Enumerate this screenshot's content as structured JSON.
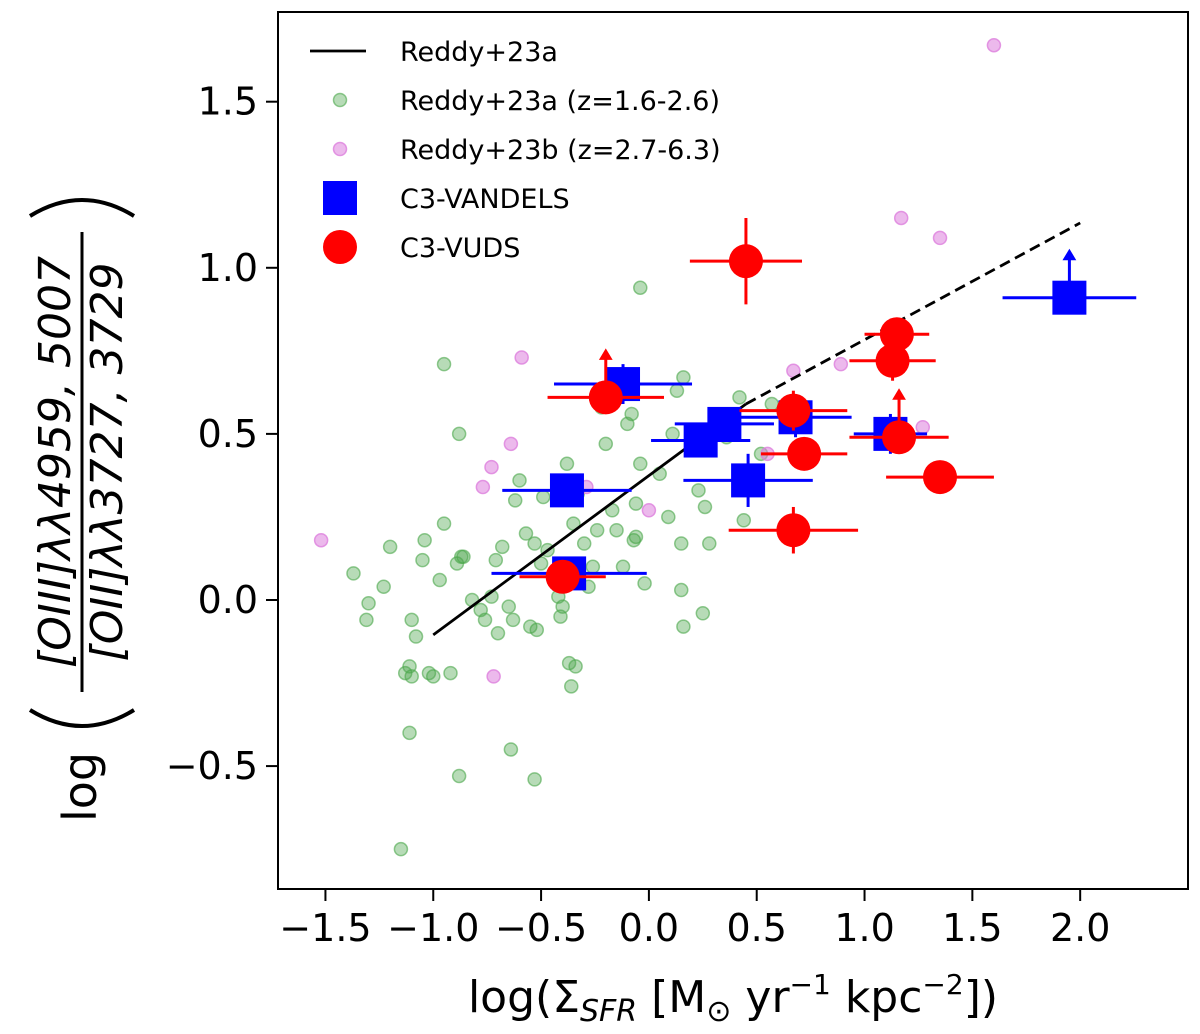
{
  "chart_data": {
    "type": "scatter",
    "xlabel": "log(Σ_SFR [M⊙ yr⁻¹ kpc⁻²])",
    "xlabel_parts": {
      "pre": "log(Σ",
      "sub": "SFR",
      "mid": " [M",
      "sun": "⊙",
      "yr": " yr",
      "sup1": "−1",
      "kpc": " kpc",
      "sup2": "−2",
      "post": "])"
    },
    "ylabel": "log([OIII]λλ4959,5007 / [OII]λλ3727,3729)",
    "ylabel_parts": {
      "log": "log",
      "numerator": "[OIII]λλ4959, 5007",
      "denominator": "[OII]λλ3727, 3729"
    },
    "xlim": [
      -1.72,
      2.5
    ],
    "ylim": [
      -0.87,
      1.77
    ],
    "xticks": [
      -1.5,
      -1.0,
      -0.5,
      0.0,
      0.5,
      1.0,
      1.5,
      2.0
    ],
    "xtick_labels": [
      "−1.5",
      "−1.0",
      "−0.5",
      "0.0",
      "0.5",
      "1.0",
      "1.5",
      "2.0"
    ],
    "yticks": [
      -0.5,
      0.0,
      0.5,
      1.0,
      1.5
    ],
    "ytick_labels": [
      "−0.5",
      "0.0",
      "0.5",
      "1.0",
      "1.5"
    ],
    "colors": {
      "green": "#4aa64a",
      "violet": "#dd7fdd",
      "blue": "#0000ff",
      "red": "#ff0000",
      "line": "#000000"
    },
    "legend": {
      "location": "top-left",
      "entries": [
        {
          "label": "Reddy+23a",
          "marker": "line"
        },
        {
          "label": "Reddy+23a (z=1.6-2.6)",
          "marker": "small-green-circle"
        },
        {
          "label": "Reddy+23b (z=2.7-6.3)",
          "marker": "small-violet-circle"
        },
        {
          "label": "C3-VANDELS",
          "marker": "blue-square"
        },
        {
          "label": "C3-VUDS",
          "marker": "red-circle"
        }
      ]
    },
    "reddy_line": {
      "solid": {
        "x": [
          -1.0,
          0.45
        ],
        "y": [
          -0.105,
          0.59
        ]
      },
      "dashed": {
        "x": [
          0.45,
          2.0
        ],
        "y": [
          0.59,
          1.135
        ]
      }
    },
    "series": [
      {
        "name": "Reddy+23a (z=1.6-2.6)",
        "points": [
          [
            -1.37,
            0.08
          ],
          [
            -1.3,
            -0.01
          ],
          [
            -1.31,
            -0.06
          ],
          [
            -1.23,
            0.04
          ],
          [
            -1.1,
            -0.06
          ],
          [
            -1.08,
            -0.11
          ],
          [
            -1.04,
            0.18
          ],
          [
            -1.02,
            -0.22
          ],
          [
            -1.0,
            -0.23
          ],
          [
            -0.97,
            0.06
          ],
          [
            -0.95,
            0.23
          ],
          [
            -0.92,
            -0.22
          ],
          [
            -0.89,
            0.11
          ],
          [
            -0.87,
            0.13
          ],
          [
            -0.86,
            0.13
          ],
          [
            -0.82,
            0.0
          ],
          [
            -0.78,
            -0.03
          ],
          [
            -0.76,
            -0.06
          ],
          [
            -0.73,
            0.01
          ],
          [
            -0.71,
            0.12
          ],
          [
            -0.7,
            -0.1
          ],
          [
            -0.68,
            0.16
          ],
          [
            -0.65,
            -0.02
          ],
          [
            -0.63,
            -0.06
          ],
          [
            -0.62,
            0.3
          ],
          [
            -0.6,
            0.36
          ],
          [
            -0.57,
            0.2
          ],
          [
            -0.55,
            -0.08
          ],
          [
            -0.53,
            0.17
          ],
          [
            -0.52,
            -0.09
          ],
          [
            -0.5,
            0.11
          ],
          [
            -0.49,
            0.31
          ],
          [
            -0.47,
            0.15
          ],
          [
            -0.44,
            0.06
          ],
          [
            -0.42,
            0.01
          ],
          [
            -0.41,
            -0.05
          ],
          [
            -0.4,
            -0.02
          ],
          [
            -0.38,
            0.41
          ],
          [
            -0.37,
            -0.19
          ],
          [
            -0.36,
            -0.26
          ],
          [
            -0.35,
            0.23
          ],
          [
            -0.34,
            -0.2
          ],
          [
            -0.33,
            0.32
          ],
          [
            -0.3,
            0.17
          ],
          [
            -0.28,
            0.04
          ],
          [
            -0.26,
            0.1
          ],
          [
            -0.24,
            0.21
          ],
          [
            -0.22,
            0.58
          ],
          [
            -0.2,
            0.47
          ],
          [
            -0.17,
            0.27
          ],
          [
            -0.15,
            0.21
          ],
          [
            -0.12,
            0.1
          ],
          [
            -0.1,
            0.53
          ],
          [
            -0.08,
            0.56
          ],
          [
            -0.07,
            0.18
          ],
          [
            -0.06,
            0.19
          ],
          [
            -0.04,
            0.94
          ],
          [
            -0.04,
            0.41
          ],
          [
            -0.06,
            0.29
          ],
          [
            -0.02,
            0.05
          ],
          [
            0.05,
            0.38
          ],
          [
            0.09,
            0.25
          ],
          [
            0.11,
            0.5
          ],
          [
            0.13,
            0.63
          ],
          [
            0.15,
            0.17
          ],
          [
            0.15,
            0.03
          ],
          [
            0.16,
            -0.08
          ],
          [
            0.16,
            0.67
          ],
          [
            0.2,
            0.46
          ],
          [
            0.23,
            0.33
          ],
          [
            0.25,
            -0.04
          ],
          [
            0.26,
            0.28
          ],
          [
            0.28,
            0.17
          ],
          [
            0.35,
            0.54
          ],
          [
            0.36,
            0.49
          ],
          [
            0.42,
            0.61
          ],
          [
            0.44,
            0.24
          ],
          [
            0.52,
            0.44
          ],
          [
            0.57,
            0.59
          ],
          [
            -1.15,
            -0.75
          ],
          [
            -1.13,
            -0.22
          ],
          [
            -1.11,
            -0.2
          ],
          [
            -1.11,
            -0.4
          ],
          [
            -0.88,
            -0.53
          ],
          [
            -0.64,
            -0.45
          ],
          [
            -0.53,
            -0.54
          ],
          [
            -1.1,
            -0.23
          ],
          [
            -0.88,
            0.5
          ],
          [
            -1.05,
            0.12
          ],
          [
            -1.2,
            0.16
          ],
          [
            -0.95,
            0.71
          ]
        ]
      },
      {
        "name": "Reddy+23b (z=2.7-6.3)",
        "points": [
          [
            -1.52,
            0.18
          ],
          [
            -0.77,
            0.34
          ],
          [
            -0.73,
            0.4
          ],
          [
            -0.64,
            0.47
          ],
          [
            -0.59,
            0.73
          ],
          [
            -0.72,
            -0.23
          ],
          [
            -0.29,
            0.34
          ],
          [
            0.0,
            0.27
          ],
          [
            0.55,
            0.44
          ],
          [
            0.67,
            0.69
          ],
          [
            0.89,
            0.71
          ],
          [
            1.17,
            1.15
          ],
          [
            1.35,
            1.09
          ],
          [
            1.27,
            0.52
          ],
          [
            1.6,
            1.67
          ]
        ]
      },
      {
        "name": "C3-VANDELS",
        "points": [
          {
            "x": -0.38,
            "y": 0.33,
            "xerr": 0.3,
            "yerr": 0.05
          },
          {
            "x": -0.12,
            "y": 0.65,
            "xerr": 0.32,
            "yerr": 0.06
          },
          {
            "x": 0.24,
            "y": 0.48,
            "xerr": 0.23,
            "yerr": 0.05
          },
          {
            "x": 0.35,
            "y": 0.53,
            "xerr": 0.23,
            "yerr": 0.05
          },
          {
            "x": 0.46,
            "y": 0.36,
            "xerr": 0.3,
            "yerr": 0.08
          },
          {
            "x": -0.37,
            "y": 0.08,
            "xerr": 0.36,
            "yerr": 0.05
          },
          {
            "x": 0.68,
            "y": 0.55,
            "xerr": 0.26,
            "yerr": 0.06
          },
          {
            "x": 1.12,
            "y": 0.5,
            "xerr": 0.17,
            "yerr": 0.06
          },
          {
            "x": 1.95,
            "y": 0.91,
            "xerr": 0.31,
            "yerr": 0.0,
            "lower_limit": true
          }
        ]
      },
      {
        "name": "C3-VUDS",
        "points": [
          {
            "x": -0.2,
            "y": 0.61,
            "xerr": 0.27,
            "yerr": 0.03,
            "lower_limit": true
          },
          {
            "x": -0.4,
            "y": 0.07,
            "xerr": 0.2,
            "yerr": 0.04
          },
          {
            "x": 0.45,
            "y": 1.02,
            "xerr": 0.26,
            "yerr": 0.13
          },
          {
            "x": 0.67,
            "y": 0.57,
            "xerr": 0.25,
            "yerr": 0.06
          },
          {
            "x": 0.72,
            "y": 0.44,
            "xerr": 0.2,
            "yerr": 0.04
          },
          {
            "x": 0.67,
            "y": 0.21,
            "xerr": 0.3,
            "yerr": 0.07
          },
          {
            "x": 1.15,
            "y": 0.8,
            "xerr": 0.15,
            "yerr": 0.04
          },
          {
            "x": 1.13,
            "y": 0.72,
            "xerr": 0.2,
            "yerr": 0.06
          },
          {
            "x": 1.16,
            "y": 0.49,
            "xerr": 0.23,
            "yerr": 0.04,
            "lower_limit": true
          },
          {
            "x": 1.35,
            "y": 0.37,
            "xerr": 0.25,
            "yerr": 0.0
          }
        ]
      }
    ]
  }
}
